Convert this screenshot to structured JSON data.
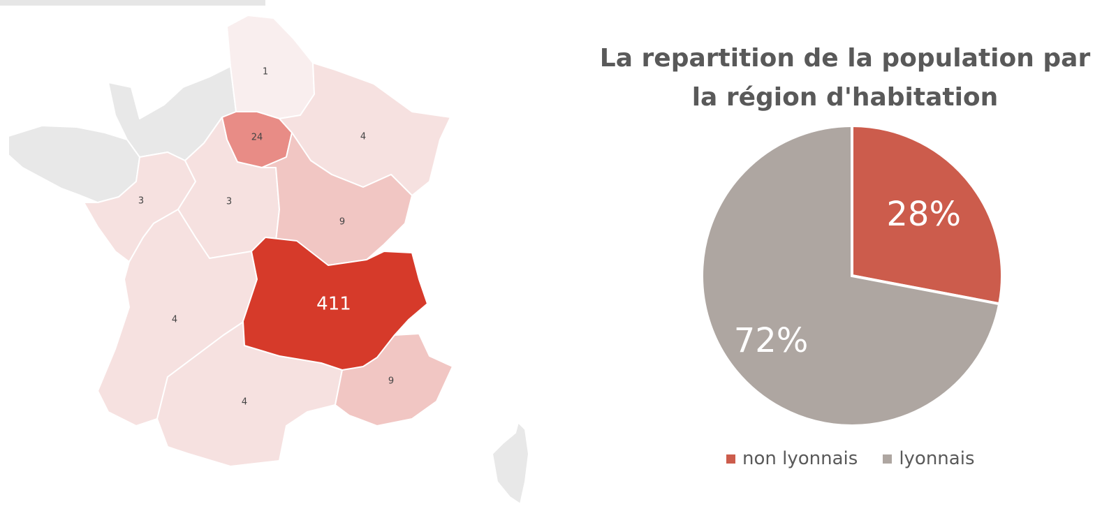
{
  "chart_data": [
    {
      "type": "map",
      "regions": [
        {
          "name": "Hauts-de-France",
          "value": 1
        },
        {
          "name": "Île-de-France",
          "value": 24
        },
        {
          "name": "Grand Est",
          "value": 4
        },
        {
          "name": "Pays de la Loire",
          "value": 3
        },
        {
          "name": "Centre-Val de Loire",
          "value": 3
        },
        {
          "name": "Bourgogne-Franche-Comté",
          "value": 9
        },
        {
          "name": "Auvergne-Rhône-Alpes",
          "value": 411
        },
        {
          "name": "Nouvelle-Aquitaine",
          "value": 4
        },
        {
          "name": "Occitanie",
          "value": 4
        },
        {
          "name": "Provence-Alpes-Côte d'Azur",
          "value": 9
        },
        {
          "name": "Normandie",
          "value": null
        },
        {
          "name": "Bretagne",
          "value": null
        },
        {
          "name": "Corse",
          "value": null
        }
      ],
      "colors": {
        "no_data": "#e8e8e8",
        "low": "#f9eeee",
        "mid": "#e88c86",
        "high": "#d63a2a"
      }
    },
    {
      "type": "pie",
      "title": "La repartition de la population par la région d'habitation",
      "categories": [
        "non lyonnais",
        "lyonnais"
      ],
      "values": [
        28,
        72
      ],
      "labels": [
        "28%",
        "72%"
      ],
      "colors": [
        "#cc5c4c",
        "#aea6a1"
      ],
      "legend": "bottom"
    }
  ]
}
